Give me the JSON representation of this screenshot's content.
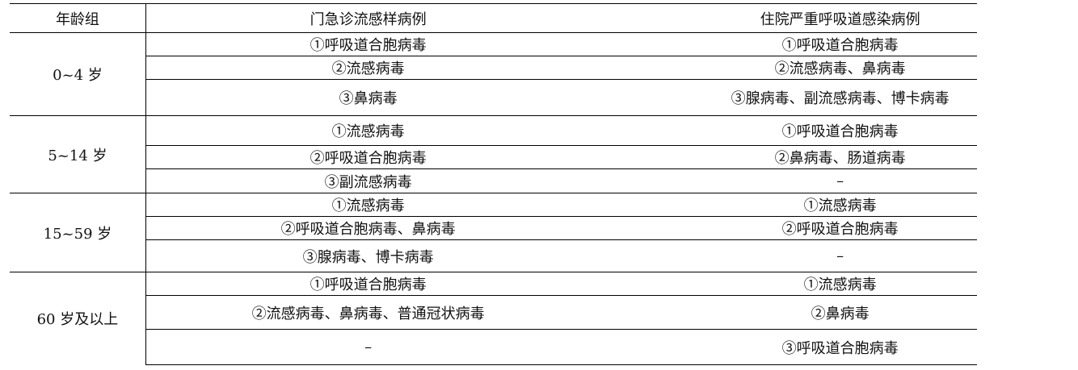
{
  "headers": [
    "年龄组",
    "门急诊流感样病例",
    "住院严重呼吸道感染病例"
  ],
  "groups": [
    {
      "age": "0~4 岁",
      "rows": [
        [
          "①呼吸道合胞病毒",
          "①呼吸道合胞病毒"
        ],
        [
          "②流感病毒",
          "②流感病毒、鼻病毒"
        ],
        [
          "③鼻病毒",
          "③腺病毒、副流感病毒、博卡病毒"
        ]
      ]
    },
    {
      "age": "5~14 岁",
      "rows": [
        [
          "①流感病毒",
          "①呼吸道合胞病毒"
        ],
        [
          "②呼吸道合胞病毒",
          "②鼻病毒、肠道病毒"
        ],
        [
          "③副流感病毒",
          "–"
        ]
      ]
    },
    {
      "age": "15~59 岁",
      "rows": [
        [
          "①流感病毒",
          "①流感病毒"
        ],
        [
          "②呼吸道合胞病毒、鼻病毒",
          "②呼吸道合胞病毒"
        ],
        [
          "③腺病毒、博卡病毒",
          "–"
        ]
      ]
    },
    {
      "age": "60 岁及以上",
      "rows": [
        [
          "①呼吸道合胞病毒",
          "①流感病毒"
        ],
        [
          "②流感病毒、鼻病毒、普通冠状病毒",
          "②鼻病毒"
        ],
        [
          "–",
          "③呼吸道合胞病毒"
        ]
      ]
    }
  ]
}
